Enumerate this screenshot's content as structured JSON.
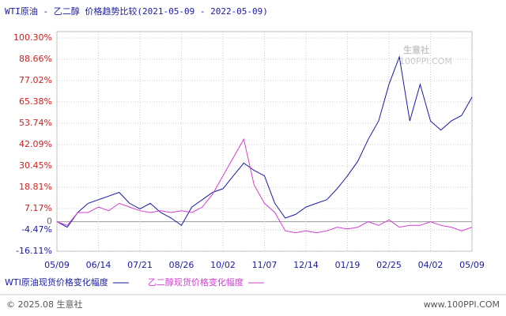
{
  "chart_data": {
    "type": "line",
    "title": "WTI原油 - 乙二醇 价格趋势比较(2021-05-09 - 2022-05-09)",
    "categories": [
      "05/09",
      null,
      null,
      null,
      "06/14",
      null,
      null,
      null,
      "07/21",
      null,
      null,
      null,
      "08/26",
      null,
      null,
      null,
      "10/02",
      null,
      null,
      null,
      "11/07",
      null,
      null,
      null,
      "12/14",
      null,
      null,
      null,
      "01/19",
      null,
      null,
      null,
      "02/25",
      null,
      null,
      null,
      "04/02",
      null,
      null,
      null,
      "05/09"
    ],
    "series": [
      {
        "name": "WTI原油现货价格变化幅度",
        "color": "#1a1aa6",
        "values": [
          0,
          -3,
          5,
          10,
          12,
          14,
          16,
          10,
          7,
          10,
          5,
          2,
          -2,
          8,
          12,
          16,
          18,
          25,
          32,
          28,
          25,
          10,
          2,
          4,
          8,
          10,
          12,
          18,
          25,
          33,
          45,
          55,
          75,
          90,
          55,
          75,
          55,
          50,
          55,
          58,
          68
        ]
      },
      {
        "name": "乙二醇现货价格变化幅度",
        "color": "#d23fd2",
        "values": [
          0,
          -2,
          5,
          5,
          8,
          6,
          10,
          8,
          6,
          5,
          6,
          5,
          6,
          5,
          8,
          15,
          25,
          35,
          45,
          20,
          10,
          5,
          -5,
          -6,
          -5,
          -6,
          -5,
          -3,
          -4,
          -3,
          0,
          -2,
          1,
          -3,
          -2,
          -2,
          0,
          -2,
          -3,
          -5,
          -3
        ]
      }
    ],
    "ylim": [
      -16.11,
      100.3
    ],
    "yticks": [
      {
        "value": -16.11,
        "label": "-16.11%"
      },
      {
        "value": -4.47,
        "label": "-4.47%"
      },
      0,
      {
        "value": 7.17,
        "label": "7.17%"
      },
      {
        "value": 18.81,
        "label": "18.81%"
      },
      {
        "value": 30.45,
        "label": "30.45%"
      },
      {
        "value": 42.09,
        "label": "42.09%"
      },
      {
        "value": 53.74,
        "label": "53.74%"
      },
      {
        "value": 65.38,
        "label": "65.38%"
      },
      {
        "value": 77.02,
        "label": "77.02%"
      },
      {
        "value": 88.66,
        "label": "88.66%"
      },
      {
        "value": 100.3,
        "label": "100.30%"
      }
    ],
    "grid": true,
    "watermark": "生意社",
    "watermark_sub": "100PPI.COM",
    "footer_left": "© 2025.08 生意社",
    "footer_right": "www.100PPI.COM"
  }
}
